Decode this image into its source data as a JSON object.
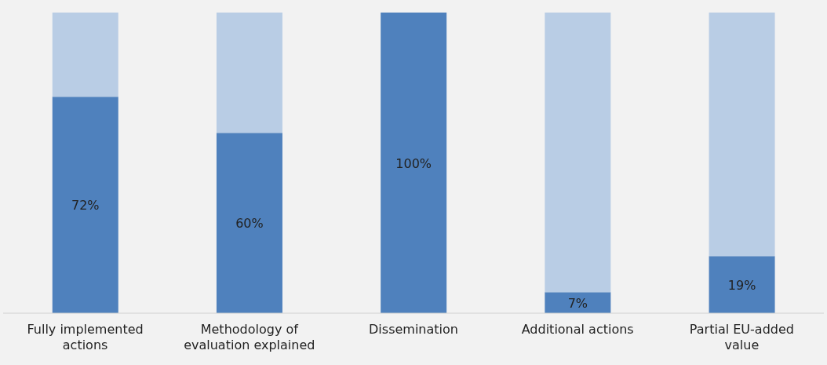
{
  "chart_data": {
    "type": "bar",
    "stacked": true,
    "categories": [
      "Fully implemented actions",
      "Methodology of evaluation explained",
      "Dissemination",
      "Additional actions",
      "Partial EU-added value"
    ],
    "series": [
      {
        "color": "#4f81bd",
        "values": [
          72,
          60,
          100,
          7,
          19
        ],
        "value_labels": [
          "72%",
          "60%",
          "100%",
          "7%",
          "19%"
        ]
      },
      {
        "color": "#b9cde5",
        "values": [
          28,
          40,
          0,
          93,
          81
        ]
      }
    ]
  }
}
